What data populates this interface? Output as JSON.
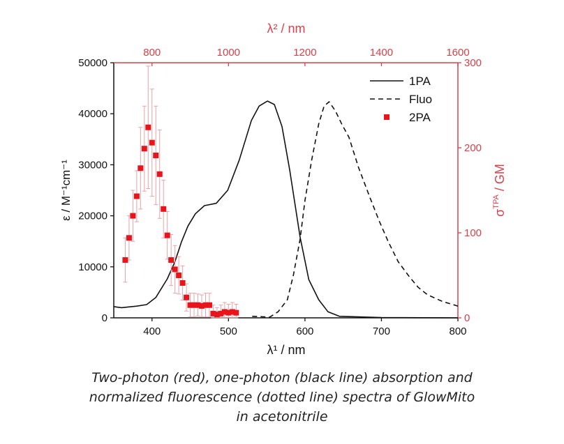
{
  "chart_data": {
    "type": "scatter",
    "xlabel_bottom": "λ¹ / nm",
    "xlabel_top": "λ² / nm",
    "ylabel_left": "ε / M⁻¹cm⁻¹",
    "ylabel_right_main": "σ",
    "ylabel_right_sup": "TPA",
    "ylabel_right_unit": " / GM",
    "xlim_bottom": [
      350,
      800
    ],
    "xticks_bottom": [
      400,
      500,
      600,
      700,
      800
    ],
    "xlim_top": [
      700,
      1600
    ],
    "xticks_top": [
      800,
      1000,
      1200,
      1400,
      1600
    ],
    "ylim_left": [
      0,
      50000
    ],
    "yticks_left": [
      0,
      10000,
      20000,
      30000,
      40000,
      50000
    ],
    "ylim_right": [
      0,
      300
    ],
    "yticks_right": [
      0,
      100,
      200,
      300
    ],
    "legend_placement": "top-right",
    "colors": {
      "primary_axis": "#111111",
      "secondary_axis": "#d8404a",
      "twopa": "#e8141b",
      "errorbar": "#e7a3a6"
    },
    "series": [
      {
        "name": "1PA",
        "style": "solid",
        "axis": "left-bottom",
        "x": [
          350,
          360,
          380,
          393,
          405,
          420,
          430,
          438.5,
          447,
          456.7,
          468.6,
          484,
          499,
          514,
          530,
          540,
          551,
          560,
          570,
          580,
          593.6,
          605,
          618,
          630,
          645,
          700,
          800
        ],
        "y": [
          2200,
          2000,
          2300,
          2600,
          4000,
          7650,
          11000,
          14900,
          18000,
          20400,
          22000,
          22450,
          25000,
          30900,
          38700,
          41500,
          42490,
          41800,
          37500,
          29000,
          15850,
          7500,
          3550,
          1200,
          300,
          50,
          0
        ]
      },
      {
        "name": "Fluo",
        "style": "dashed",
        "axis": "left-bottom",
        "x": [
          531,
          554,
          565,
          577,
          585,
          593.6,
          600,
          608.8,
          618,
          625,
          631.6,
          640,
          648,
          657.5,
          670,
          684.9,
          697,
          709,
          722,
          736.3,
          748,
          760.6,
          780,
          797,
          800
        ],
        "y": [
          300,
          150,
          1200,
          3550,
          8500,
          15400,
          23000,
          30900,
          38000,
          41500,
          42350,
          40500,
          38000,
          35400,
          29500,
          23600,
          19000,
          14900,
          11000,
          8100,
          6000,
          4500,
          3200,
          2450,
          2300
        ]
      },
      {
        "name": "2PA",
        "style": "markers",
        "axis": "right-top",
        "x": [
          730,
          740,
          750,
          760,
          770,
          780,
          790,
          800,
          810,
          820,
          830,
          840,
          850,
          860,
          870,
          880,
          890,
          900,
          910,
          920,
          930,
          940,
          950,
          960,
          970,
          980,
          990,
          1000,
          1010,
          1020
        ],
        "y": [
          68,
          94,
          120,
          143,
          176,
          199,
          224,
          206,
          191,
          169,
          128,
          97,
          68,
          57,
          50,
          41,
          24,
          15,
          15,
          15,
          14,
          15,
          15,
          5,
          4,
          5,
          7,
          6,
          7,
          6
        ],
        "error": [
          26,
          26,
          30,
          30,
          48,
          50,
          72,
          63,
          58,
          52,
          34,
          28,
          30,
          28,
          22,
          20,
          16,
          14,
          14,
          13,
          13,
          14,
          14,
          10,
          8,
          10,
          11,
          10,
          11,
          10
        ]
      }
    ]
  },
  "caption": {
    "lines": [
      "Two-photon (red), one-photon (black line) absorption and",
      "normalized fluorescence (dotted line) spectra of GlowMito",
      "in acetonitrile"
    ]
  }
}
